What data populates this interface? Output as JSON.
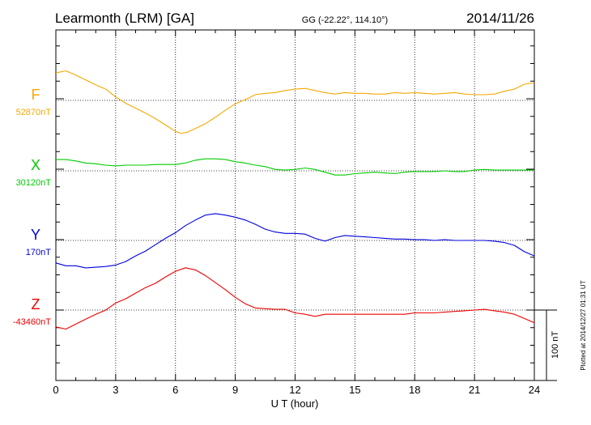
{
  "header": {
    "station": "Learmonth (LRM)  [GA]",
    "coords": "GG (-22.22°, 114.10°)",
    "date": "2014/11/26"
  },
  "footer": {
    "plotted": "Plotted at 2014/12/27 01:31  UT"
  },
  "chart_data": {
    "type": "line",
    "title": "Learmonth (LRM)  [GA]",
    "xlabel": "U T (hour)",
    "xlim": [
      0,
      24
    ],
    "xticks": [
      0,
      3,
      6,
      9,
      12,
      15,
      18,
      21,
      24
    ],
    "grid": true,
    "scale_bar": {
      "label": "100 nT",
      "value_nT": 100
    },
    "series": [
      {
        "name": "F",
        "baseline_label": "52870nT",
        "baseline_nT": 52870,
        "color": "#f5a800",
        "x": [
          0,
          0.5,
          1,
          1.5,
          2,
          2.5,
          3,
          3.5,
          4,
          4.5,
          5,
          5.5,
          6,
          6.3,
          6.6,
          7,
          7.5,
          8,
          8.5,
          9,
          9.5,
          10,
          10.5,
          11,
          11.5,
          12,
          12.5,
          13,
          13.5,
          14,
          14.5,
          15,
          15.5,
          16,
          16.5,
          17,
          17.5,
          18,
          18.5,
          19,
          19.5,
          20,
          20.5,
          21,
          21.5,
          22,
          22.5,
          23,
          23.5,
          24
        ],
        "y": [
          39,
          42,
          36,
          29,
          22,
          16,
          5,
          -4,
          -11,
          -18,
          -26,
          -35,
          -44,
          -47,
          -45,
          -40,
          -33,
          -24,
          -14,
          -5,
          1,
          8,
          10,
          11,
          14,
          16,
          17,
          14,
          11,
          9,
          11,
          10,
          10,
          9,
          9,
          11,
          10,
          11,
          10,
          9,
          10,
          11,
          9,
          8,
          8,
          9,
          13,
          16,
          23,
          25
        ]
      },
      {
        "name": "X",
        "baseline_label": "30120nT",
        "baseline_nT": 30120,
        "color": "#00cc00",
        "x": [
          0,
          0.5,
          1,
          1.5,
          2,
          2.5,
          3,
          3.5,
          4,
          4.5,
          5,
          5.5,
          6,
          6.5,
          7,
          7.5,
          8,
          8.5,
          9,
          9.5,
          10,
          10.5,
          11,
          11.5,
          12,
          12.5,
          13,
          13.5,
          14,
          14.5,
          15,
          15.5,
          16,
          16.5,
          17,
          17.5,
          18,
          18.5,
          19,
          19.5,
          20,
          20.5,
          21,
          21.5,
          22,
          22.5,
          23,
          23.5,
          24
        ],
        "y": [
          16,
          16,
          14,
          11,
          10,
          8,
          7,
          8,
          8,
          8,
          9,
          9,
          9,
          11,
          15,
          17,
          17,
          16,
          13,
          11,
          8,
          6,
          2,
          1,
          2,
          4,
          2,
          -2,
          -6,
          -6,
          -4,
          -3,
          -2,
          -3,
          -4,
          -2,
          -1,
          -1,
          -1,
          0,
          -1,
          -1,
          1,
          2,
          1,
          1,
          1,
          1,
          1
        ]
      },
      {
        "name": "Y",
        "baseline_label": "170nT",
        "baseline_nT": 170,
        "color": "#0000dd",
        "x": [
          0,
          0.5,
          1,
          1.5,
          2,
          2.5,
          3,
          3.5,
          4,
          4.5,
          5,
          5.5,
          6,
          6.5,
          7,
          7.5,
          8,
          8.5,
          9,
          9.5,
          10,
          10.5,
          11,
          11.5,
          12,
          12.5,
          13,
          13.5,
          14,
          14.5,
          15,
          15.5,
          16,
          16.5,
          17,
          17.5,
          18,
          18.5,
          19,
          19.5,
          20,
          20.5,
          21,
          21.5,
          22,
          22.5,
          23,
          23.5,
          24
        ],
        "y": [
          -32,
          -36,
          -36,
          -39,
          -38,
          -37,
          -35,
          -30,
          -22,
          -15,
          -6,
          3,
          11,
          21,
          29,
          36,
          38,
          36,
          33,
          29,
          23,
          16,
          12,
          10,
          10,
          9,
          3,
          -1,
          4,
          7,
          6,
          5,
          4,
          3,
          2,
          2,
          1,
          1,
          0,
          1,
          0,
          0,
          0,
          0,
          -1,
          -3,
          -7,
          -16,
          -22
        ]
      },
      {
        "name": "Z",
        "baseline_label": "-43460nT",
        "baseline_nT": -43460,
        "color": "#ee0000",
        "x": [
          0,
          0.5,
          1,
          1.5,
          2,
          2.5,
          3,
          3.5,
          4,
          4.5,
          5,
          5.5,
          6,
          6.5,
          7,
          7.5,
          8,
          8.5,
          9,
          9.5,
          10,
          10.5,
          11,
          11.5,
          12,
          12.5,
          13,
          13.5,
          14,
          14.5,
          15,
          15.5,
          16,
          16.5,
          17,
          17.5,
          18,
          18.5,
          19,
          19.5,
          20,
          20.5,
          21,
          21.5,
          22,
          22.5,
          23,
          23.5,
          24
        ],
        "y": [
          -24,
          -27,
          -20,
          -13,
          -6,
          0,
          10,
          16,
          24,
          32,
          38,
          47,
          55,
          60,
          57,
          49,
          39,
          29,
          18,
          9,
          3,
          2,
          1,
          1,
          -4,
          -6,
          -9,
          -6,
          -6,
          -6,
          -6,
          -6,
          -6,
          -6,
          -6,
          -6,
          -4,
          -4,
          -4,
          -3,
          -2,
          -1,
          0,
          1,
          -1,
          -3,
          -6,
          -12,
          -18
        ]
      }
    ]
  }
}
